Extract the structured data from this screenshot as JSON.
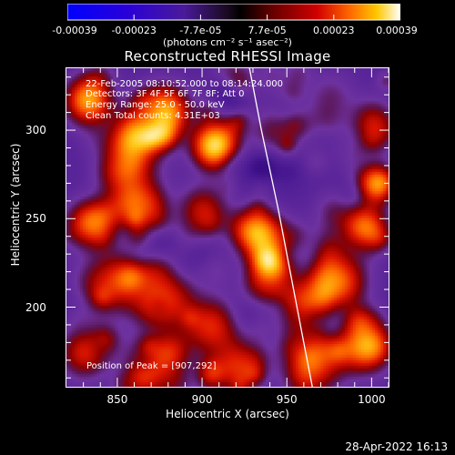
{
  "colorbar": {
    "tick_labels": [
      "-0.00039",
      "-0.00023",
      "-7.7e-05",
      "7.7e-05",
      "0.00023",
      "0.00039"
    ],
    "units": "(photons cm⁻² s⁻¹ asec⁻²)"
  },
  "chart_data": {
    "type": "heatmap",
    "title": "Reconstructed RHESSI Image",
    "xlabel": "Heliocentric X (arcsec)",
    "ylabel": "Heliocentric Y (arcsec)",
    "xlim": [
      820,
      1010
    ],
    "ylim": [
      155,
      335
    ],
    "x_ticks": [
      850,
      900,
      950,
      1000
    ],
    "y_ticks": [
      200,
      250,
      300
    ],
    "info_lines": [
      "22-Feb-2005 08:10:52.000 to 08:14:24.000",
      "Detectors: 3F 4F 5F 6F 7F 8F; Att 0",
      "Energy Range: 25.0 - 50.0 keV",
      "Clean    Total counts: 4.31E+03"
    ],
    "annotation": "Position of Peak = [907,292]",
    "peak": {
      "x": 907,
      "y": 292
    },
    "colorbar_range": [
      -0.00039,
      0.00039
    ],
    "blobs": [
      {
        "x": 907,
        "y": 292,
        "amp": 1.0,
        "s": 9
      },
      {
        "x": 858,
        "y": 295,
        "amp": 0.7,
        "s": 12
      },
      {
        "x": 832,
        "y": 318,
        "amp": 0.8,
        "s": 9
      },
      {
        "x": 878,
        "y": 312,
        "amp": 0.6,
        "s": 10
      },
      {
        "x": 860,
        "y": 262,
        "amp": 0.55,
        "s": 11
      },
      {
        "x": 832,
        "y": 248,
        "amp": 0.6,
        "s": 9
      },
      {
        "x": 900,
        "y": 255,
        "amp": 0.45,
        "s": 10
      },
      {
        "x": 932,
        "y": 243,
        "amp": 0.8,
        "s": 9
      },
      {
        "x": 940,
        "y": 225,
        "amp": 0.6,
        "s": 9
      },
      {
        "x": 848,
        "y": 215,
        "amp": 0.5,
        "s": 12
      },
      {
        "x": 880,
        "y": 205,
        "amp": 0.45,
        "s": 11
      },
      {
        "x": 905,
        "y": 190,
        "amp": 0.5,
        "s": 11
      },
      {
        "x": 872,
        "y": 168,
        "amp": 0.55,
        "s": 12
      },
      {
        "x": 830,
        "y": 175,
        "amp": 0.5,
        "s": 10
      },
      {
        "x": 920,
        "y": 168,
        "amp": 0.45,
        "s": 10
      },
      {
        "x": 980,
        "y": 215,
        "amp": 0.65,
        "s": 11
      },
      {
        "x": 995,
        "y": 245,
        "amp": 0.75,
        "s": 9
      },
      {
        "x": 1000,
        "y": 270,
        "amp": 0.6,
        "s": 8
      },
      {
        "x": 965,
        "y": 170,
        "amp": 0.6,
        "s": 12
      },
      {
        "x": 995,
        "y": 180,
        "amp": 0.7,
        "s": 10
      },
      {
        "x": 962,
        "y": 205,
        "amp": 0.5,
        "s": 9
      },
      {
        "x": 1000,
        "y": 305,
        "amp": 0.4,
        "s": 9
      },
      {
        "x": 940,
        "y": 300,
        "amp": 0.25,
        "s": 9
      },
      {
        "x": 975,
        "y": 320,
        "amp": 0.2,
        "s": 10
      }
    ],
    "limb": [
      [
        928,
        335
      ],
      [
        935,
        300
      ],
      [
        945,
        255
      ],
      [
        952,
        220
      ],
      [
        960,
        180
      ],
      [
        965,
        155
      ]
    ]
  },
  "timestamp": "28-Apr-2022 16:13"
}
